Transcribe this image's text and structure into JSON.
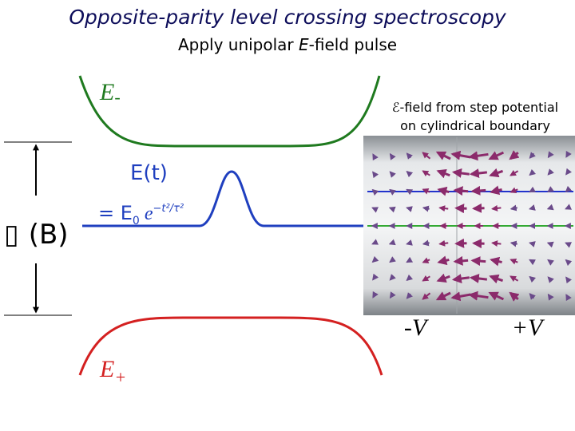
{
  "title": "Opposite-parity level crossing spectroscopy",
  "subtitle": {
    "before": "Apply unipolar ",
    "italic": "E",
    "after": "-field pulse"
  },
  "levels": {
    "upper": {
      "symbol": "E",
      "subscript": "-"
    },
    "lower": {
      "symbol": "E",
      "subscript": "+"
    }
  },
  "pulse": {
    "lhs": "E(t)",
    "eq": "= E",
    "sub": "0",
    "base": "e",
    "exponent": "−t²/τ²"
  },
  "gap": {
    "prefix": "▯",
    "label": "(B)"
  },
  "field_caption": {
    "line1": "ℰ-field from step potential",
    "line2": "on cylindrical boundary"
  },
  "electrodes": {
    "left": "-V",
    "right": "+V"
  }
}
